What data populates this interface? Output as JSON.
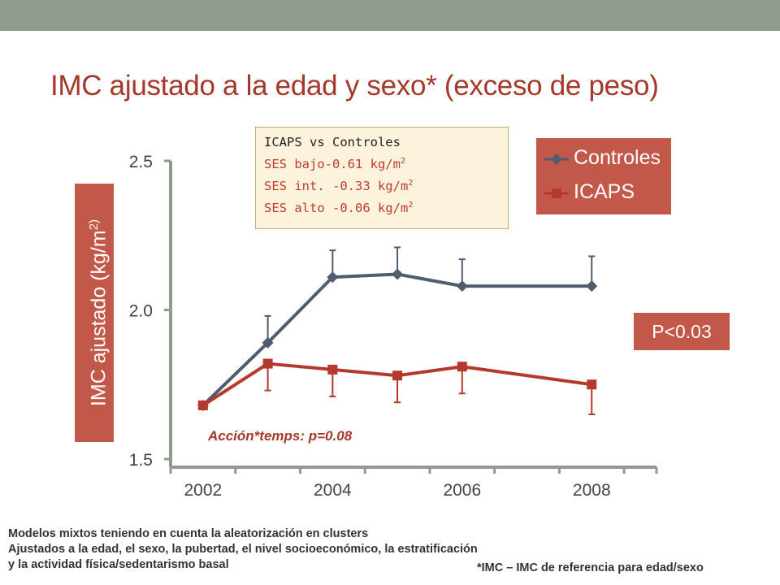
{
  "slide": {
    "title": "IMC ajustado a la edad y sexo* (exceso de peso)",
    "footnote_lines": [
      "Modelos mixtos teniendo en cuenta la aleatorización en clusters",
      "Ajustados a la edad, el sexo, la pubertad, el nivel socioeconómico, la estratificación",
      "y la actividad física/sedentarismo basal"
    ],
    "reference_note": "*IMC – IMC de referencia para edad/sexo"
  },
  "infobox": {
    "heading": "ICAPS vs Controles",
    "lines": [
      {
        "text": "SES bajo-0.61 kg/m",
        "sup": "2"
      },
      {
        "text": "SES int. -0.33 kg/m",
        "sup": "2"
      },
      {
        "text": "SES alto -0.06 kg/m",
        "sup": "2"
      }
    ]
  },
  "p_value": "P<0.03",
  "interaction": "Acción*temps: p=0.08",
  "chart_data": {
    "type": "line",
    "title": "",
    "xlabel": "",
    "ylabel": "IMC ajustado (kg/m",
    "ylabel_sup": "2)",
    "ylim": [
      1.5,
      2.5
    ],
    "xlim": [
      2001.5,
      2009.0
    ],
    "x_ticks": [
      2002,
      2004,
      2006,
      2008
    ],
    "y_ticks": [
      "1.5",
      "2.0",
      "2.5"
    ],
    "y_tick_values": [
      1.5,
      2.0,
      2.5
    ],
    "grid": false,
    "legend_position": "top-right",
    "series": [
      {
        "name": "Controles",
        "color": "#4f5d6e",
        "marker": "diamond",
        "x": [
          2002.0,
          2003.0,
          2004.0,
          2005.0,
          2006.0,
          2008.0
        ],
        "y": [
          1.68,
          1.89,
          2.11,
          2.12,
          2.08,
          2.08
        ],
        "error_plus": [
          0.0,
          0.09,
          0.09,
          0.09,
          0.09,
          0.1
        ]
      },
      {
        "name": "ICAPS",
        "color": "#b5382c",
        "marker": "square",
        "x": [
          2002.0,
          2003.0,
          2004.0,
          2005.0,
          2006.0,
          2008.0
        ],
        "y": [
          1.68,
          1.82,
          1.8,
          1.78,
          1.81,
          1.75
        ],
        "error_minus": [
          0.0,
          0.09,
          0.09,
          0.09,
          0.09,
          0.1
        ]
      }
    ]
  },
  "colors": {
    "accent": "#c2584a",
    "title": "#a5382a",
    "band": "#8f9b8c",
    "axis": "#8f9b8c"
  }
}
